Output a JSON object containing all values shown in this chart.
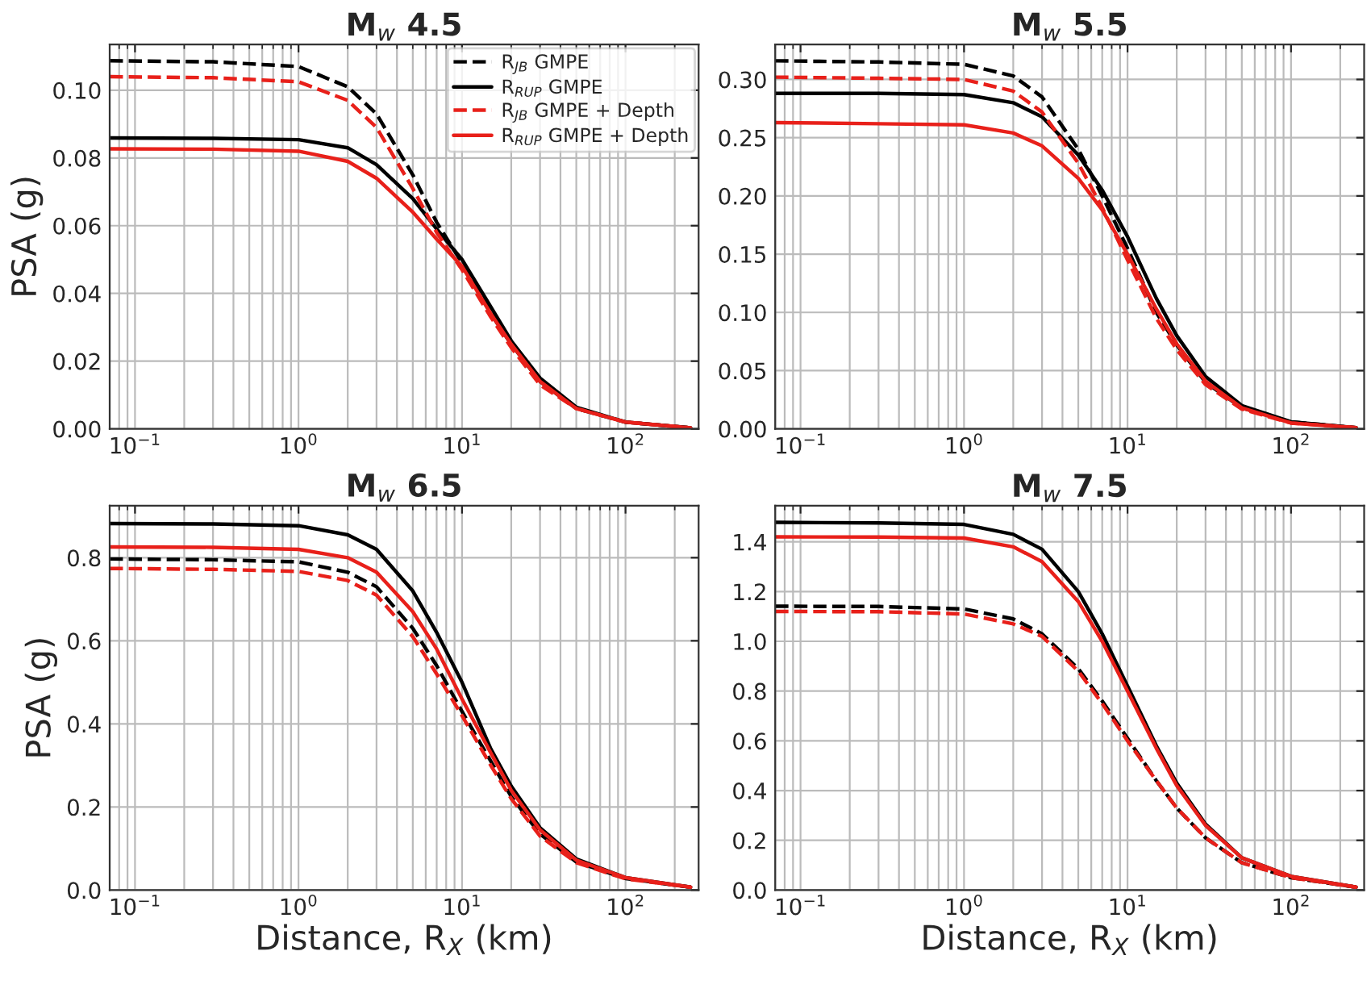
{
  "chart_data": [
    {
      "type": "line",
      "title": "M$_{w}$ 4.5",
      "ylabel": "PSA (g)",
      "log": "x",
      "grid": true,
      "legend": "top right",
      "x": [
        0.07,
        0.3,
        1,
        2,
        3,
        5,
        7,
        10,
        15,
        20,
        30,
        50,
        100,
        250
      ],
      "xlim": [
        0.07,
        280
      ],
      "xticks": [
        {
          "value": 0.1,
          "label": "10$^{−1}$"
        },
        {
          "value": 1,
          "label": "10$^{0}$"
        },
        {
          "value": 10,
          "label": "10$^{1}$"
        },
        {
          "value": 100,
          "label": "10$^{2}$"
        }
      ],
      "ylim": [
        0,
        0.1135
      ],
      "yticks": [
        {
          "value": 0,
          "label": "0.00"
        },
        {
          "value": 0.02,
          "label": "0.02"
        },
        {
          "value": 0.04,
          "label": "0.04"
        },
        {
          "value": 0.06,
          "label": "0.06"
        },
        {
          "value": 0.08,
          "label": "0.08"
        },
        {
          "value": 0.1,
          "label": "0.10"
        }
      ],
      "series": [
        {
          "name": "R$_{JB}$ GMPE",
          "color": "#000000",
          "line_style": "dashed",
          "values": [
            0.1087,
            0.1084,
            0.107,
            0.101,
            0.093,
            0.075,
            0.061,
            0.049,
            0.034,
            0.025,
            0.014,
            0.006,
            0.002,
            0.0003
          ]
        },
        {
          "name": "R$_{RUP}$ GMPE",
          "color": "#000000",
          "line_style": "solid",
          "values": [
            0.0859,
            0.0858,
            0.0854,
            0.083,
            0.078,
            0.068,
            0.059,
            0.05,
            0.036,
            0.026,
            0.015,
            0.0064,
            0.002,
            0.0003
          ]
        },
        {
          "name": "R$_{JB}$ GMPE + Depth",
          "color": "#e8201a",
          "line_style": "dashed",
          "values": [
            0.104,
            0.1037,
            0.1025,
            0.097,
            0.089,
            0.071,
            0.058,
            0.047,
            0.033,
            0.024,
            0.013,
            0.006,
            0.002,
            0.0003
          ]
        },
        {
          "name": "R$_{RUP}$ GMPE + Depth",
          "color": "#e8201a",
          "line_style": "solid",
          "values": [
            0.0827,
            0.0826,
            0.082,
            0.079,
            0.074,
            0.064,
            0.056,
            0.048,
            0.034,
            0.025,
            0.014,
            0.006,
            0.002,
            0.0003
          ]
        }
      ]
    },
    {
      "type": "line",
      "title": "M$_{w}$ 5.5",
      "log": "x",
      "grid": true,
      "x": [
        0.07,
        0.3,
        1,
        2,
        3,
        5,
        7,
        10,
        15,
        20,
        30,
        50,
        100,
        250
      ],
      "xlim": [
        0.07,
        280
      ],
      "xticks": [
        {
          "value": 0.1,
          "label": "10$^{−1}$"
        },
        {
          "value": 1,
          "label": "10$^{0}$"
        },
        {
          "value": 10,
          "label": "10$^{1}$"
        },
        {
          "value": 100,
          "label": "10$^{2}$"
        }
      ],
      "ylim": [
        0,
        0.33
      ],
      "yticks": [
        {
          "value": 0,
          "label": "0.00"
        },
        {
          "value": 0.05,
          "label": "0.05"
        },
        {
          "value": 0.1,
          "label": "0.10"
        },
        {
          "value": 0.15,
          "label": "0.15"
        },
        {
          "value": 0.2,
          "label": "0.20"
        },
        {
          "value": 0.25,
          "label": "0.25"
        },
        {
          "value": 0.3,
          "label": "0.30"
        }
      ],
      "series": [
        {
          "color": "#000000",
          "line_style": "dashed",
          "values": [
            0.316,
            0.315,
            0.313,
            0.303,
            0.285,
            0.24,
            0.2,
            0.155,
            0.1,
            0.072,
            0.04,
            0.018,
            0.006,
            0.001
          ]
        },
        {
          "color": "#000000",
          "line_style": "solid",
          "values": [
            0.288,
            0.288,
            0.287,
            0.28,
            0.268,
            0.235,
            0.205,
            0.165,
            0.112,
            0.08,
            0.045,
            0.02,
            0.006,
            0.001
          ]
        },
        {
          "color": "#e8201a",
          "line_style": "dashed",
          "values": [
            0.302,
            0.301,
            0.3,
            0.29,
            0.272,
            0.228,
            0.19,
            0.145,
            0.095,
            0.068,
            0.038,
            0.017,
            0.005,
            0.001
          ]
        },
        {
          "color": "#e8201a",
          "line_style": "solid",
          "values": [
            0.263,
            0.262,
            0.261,
            0.254,
            0.243,
            0.215,
            0.188,
            0.15,
            0.103,
            0.073,
            0.041,
            0.018,
            0.005,
            0.001
          ]
        }
      ]
    },
    {
      "type": "line",
      "title": "M$_{w}$ 6.5",
      "xlabel": "Distance, R$_{X}$ (km)",
      "ylabel": "PSA (g)",
      "log": "x",
      "grid": true,
      "x": [
        0.07,
        0.3,
        1,
        2,
        3,
        5,
        7,
        10,
        15,
        20,
        30,
        50,
        100,
        250
      ],
      "xlim": [
        0.07,
        280
      ],
      "xticks": [
        {
          "value": 0.1,
          "label": "10$^{−1}$"
        },
        {
          "value": 1,
          "label": "10$^{0}$"
        },
        {
          "value": 10,
          "label": "10$^{1}$"
        },
        {
          "value": 100,
          "label": "10$^{2}$"
        }
      ],
      "ylim": [
        0,
        0.925
      ],
      "yticks": [
        {
          "value": 0,
          "label": "0.0"
        },
        {
          "value": 0.2,
          "label": "0.2"
        },
        {
          "value": 0.4,
          "label": "0.4"
        },
        {
          "value": 0.6,
          "label": "0.6"
        },
        {
          "value": 0.8,
          "label": "0.8"
        }
      ],
      "series": [
        {
          "color": "#000000",
          "line_style": "dashed",
          "values": [
            0.797,
            0.795,
            0.79,
            0.765,
            0.73,
            0.63,
            0.54,
            0.43,
            0.31,
            0.225,
            0.135,
            0.068,
            0.028,
            0.007
          ]
        },
        {
          "color": "#000000",
          "line_style": "solid",
          "values": [
            0.882,
            0.881,
            0.877,
            0.855,
            0.82,
            0.72,
            0.62,
            0.5,
            0.34,
            0.25,
            0.15,
            0.075,
            0.03,
            0.007
          ]
        },
        {
          "color": "#e8201a",
          "line_style": "dashed",
          "values": [
            0.774,
            0.772,
            0.767,
            0.745,
            0.71,
            0.61,
            0.52,
            0.42,
            0.3,
            0.22,
            0.13,
            0.066,
            0.027,
            0.007
          ]
        },
        {
          "color": "#e8201a",
          "line_style": "solid",
          "values": [
            0.826,
            0.825,
            0.82,
            0.8,
            0.765,
            0.67,
            0.58,
            0.46,
            0.33,
            0.24,
            0.145,
            0.072,
            0.03,
            0.007
          ]
        }
      ]
    },
    {
      "type": "line",
      "title": "M$_{w}$ 7.5",
      "xlabel": "Distance, R$_{X}$ (km)",
      "log": "x",
      "grid": true,
      "x": [
        0.07,
        0.3,
        1,
        2,
        3,
        5,
        7,
        10,
        15,
        20,
        30,
        50,
        100,
        250
      ],
      "xlim": [
        0.07,
        280
      ],
      "xticks": [
        {
          "value": 0.1,
          "label": "10$^{−1}$"
        },
        {
          "value": 1,
          "label": "10$^{0}$"
        },
        {
          "value": 10,
          "label": "10$^{1}$"
        },
        {
          "value": 100,
          "label": "10$^{2}$"
        }
      ],
      "ylim": [
        0,
        1.545
      ],
      "yticks": [
        {
          "value": 0,
          "label": "0.0"
        },
        {
          "value": 0.2,
          "label": "0.2"
        },
        {
          "value": 0.4,
          "label": "0.4"
        },
        {
          "value": 0.6,
          "label": "0.6"
        },
        {
          "value": 0.8,
          "label": "0.8"
        },
        {
          "value": 1.0,
          "label": "1.0"
        },
        {
          "value": 1.2,
          "label": "1.2"
        },
        {
          "value": 1.4,
          "label": "1.4"
        }
      ],
      "series": [
        {
          "color": "#000000",
          "line_style": "dashed",
          "values": [
            1.141,
            1.14,
            1.13,
            1.09,
            1.03,
            0.89,
            0.76,
            0.61,
            0.44,
            0.33,
            0.21,
            0.11,
            0.05,
            0.012
          ]
        },
        {
          "color": "#000000",
          "line_style": "solid",
          "values": [
            1.478,
            1.476,
            1.47,
            1.43,
            1.37,
            1.2,
            1.03,
            0.82,
            0.58,
            0.43,
            0.265,
            0.13,
            0.055,
            0.012
          ]
        },
        {
          "color": "#e8201a",
          "line_style": "dashed",
          "values": [
            1.12,
            1.119,
            1.11,
            1.07,
            1.02,
            0.88,
            0.75,
            0.6,
            0.44,
            0.33,
            0.21,
            0.11,
            0.05,
            0.012
          ]
        },
        {
          "color": "#e8201a",
          "line_style": "solid",
          "values": [
            1.42,
            1.419,
            1.415,
            1.38,
            1.32,
            1.16,
            1.0,
            0.8,
            0.57,
            0.42,
            0.26,
            0.13,
            0.055,
            0.012
          ]
        }
      ]
    }
  ]
}
